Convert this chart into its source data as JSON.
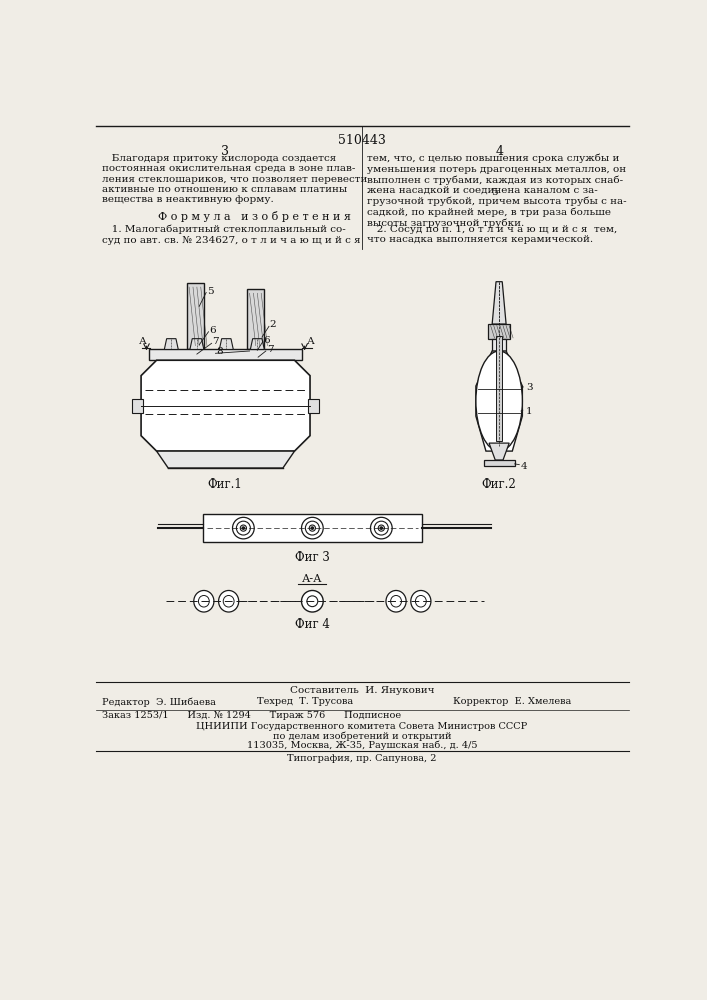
{
  "page_color": "#f0ede6",
  "title": "510443",
  "col_left": "3",
  "col_right": "4",
  "text_left_1": "   Благодаря притоку кислорода создается\nпостоянная окислительная среда в зоне плав-\nления стеклошариков, что позволяет перевести\nактивные по отношению к сплавам платины\nвещества в неактивную форму.",
  "text_left_formula": "Ф о р м у л а   и з о б р е т е н и я",
  "text_left_2": "   1. Малогабаритный стеклоплавильный со-\nсуд по авт. св. № 234627, о т л и ч а ю щ и й с я",
  "text_right_1": "тем, что, с целью повышения срока службы и\nуменьшения потерь драгоценных металлов, он\nвыполнен с трубами, каждая из которых снаб-\nжена насадкой и соединена каналом с за-\nгрузочной трубкой, причем высота трубы с на-\nсадкой, по крайней мере, в три раза больше\nвысоты загрузочной трубки.",
  "text_right_2": "   2. Сосуд по п. 1, о т л и ч а ю щ и й с я  тем,\nчто насадка выполняется керамической.",
  "fig1_caption": "Фиг.1",
  "fig2_caption": "Фиг.2",
  "fig3_caption": "Фиг 3",
  "fig4_label": "А-А",
  "fig4_caption": "Фиг 4",
  "footer_sestavitel": "Составитель  И. Янукович",
  "footer_editor": "Редактор  Э. Шибаева",
  "footer_tech": "Техред  Т. Трусова",
  "footer_corrector": "Корректор  Е. Хмелева",
  "footer_line3": "Заказ 1253/1      Изд. № 1294      Тираж 576      Подписное",
  "footer_line4": "ЦНИИПИ Государственного комитета Совета Министров СССР",
  "footer_line5": "по делам изобретений и открытий",
  "footer_line6": "113035, Москва, Ж-35, Раушская наб., д. 4/5",
  "footer_line7": "Типография, пр. Сапунова, 2",
  "lc": "#1a1a1a",
  "tc": "#111111"
}
